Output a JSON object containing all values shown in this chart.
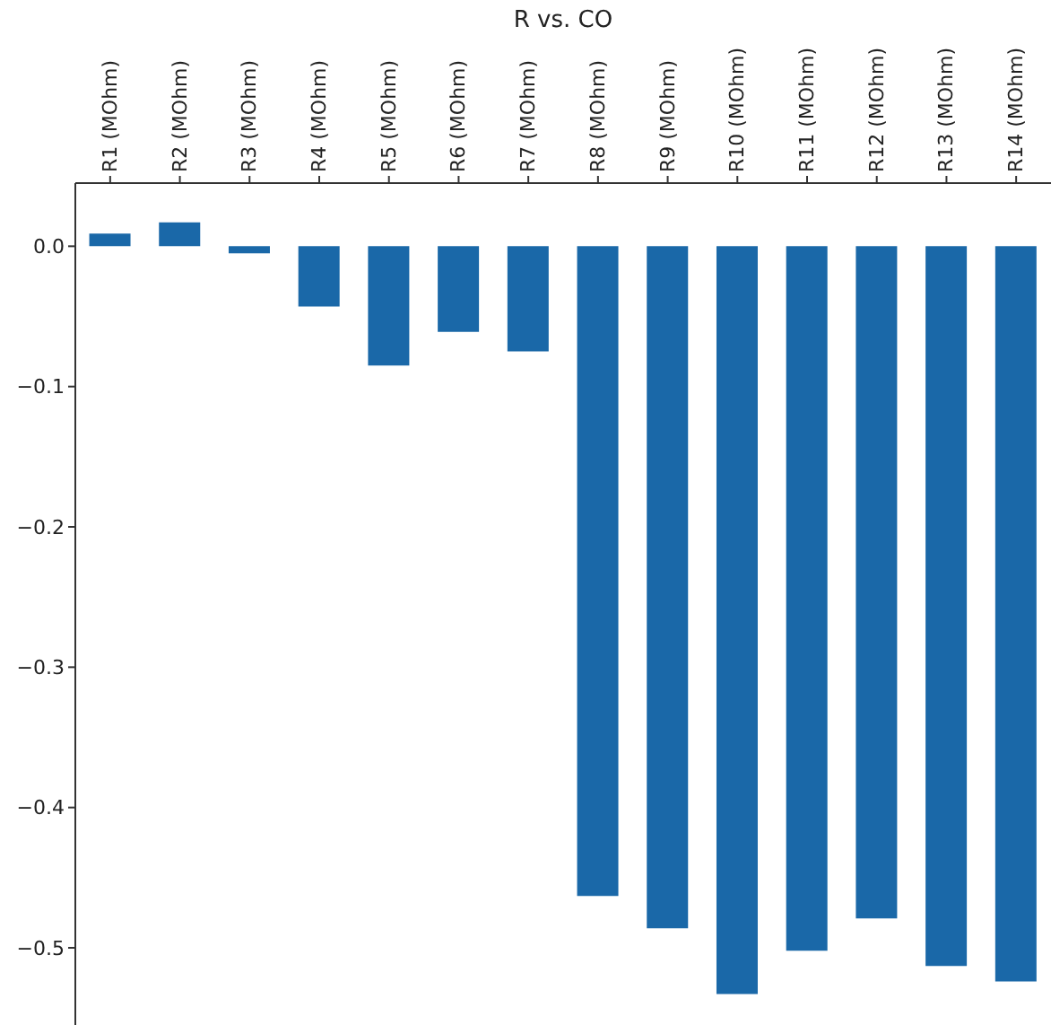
{
  "chart_data": {
    "type": "bar",
    "title": "R vs. CO",
    "categories": [
      "R1 (MOhm)",
      "R2 (MOhm)",
      "R3 (MOhm)",
      "R4 (MOhm)",
      "R5 (MOhm)",
      "R6 (MOhm)",
      "R7 (MOhm)",
      "R8 (MOhm)",
      "R9 (MOhm)",
      "R10 (MOhm)",
      "R11 (MOhm)",
      "R12 (MOhm)",
      "R13 (MOhm)",
      "R14 (MOhm)"
    ],
    "values": [
      0.009,
      0.017,
      -0.005,
      -0.043,
      -0.085,
      -0.061,
      -0.075,
      -0.463,
      -0.486,
      -0.533,
      -0.502,
      -0.479,
      -0.513,
      -0.524
    ],
    "color": "#1a68a8",
    "ylim": [
      -0.555,
      0.045
    ],
    "yticks": [
      {
        "value": 0,
        "label": "0.0"
      },
      {
        "value": -0.1,
        "label": "−0.1"
      },
      {
        "value": -0.2,
        "label": "−0.2"
      },
      {
        "value": -0.3,
        "label": "−0.3"
      },
      {
        "value": -0.4,
        "label": "−0.4"
      },
      {
        "value": -0.5,
        "label": "−0.5"
      }
    ],
    "grid": false
  }
}
